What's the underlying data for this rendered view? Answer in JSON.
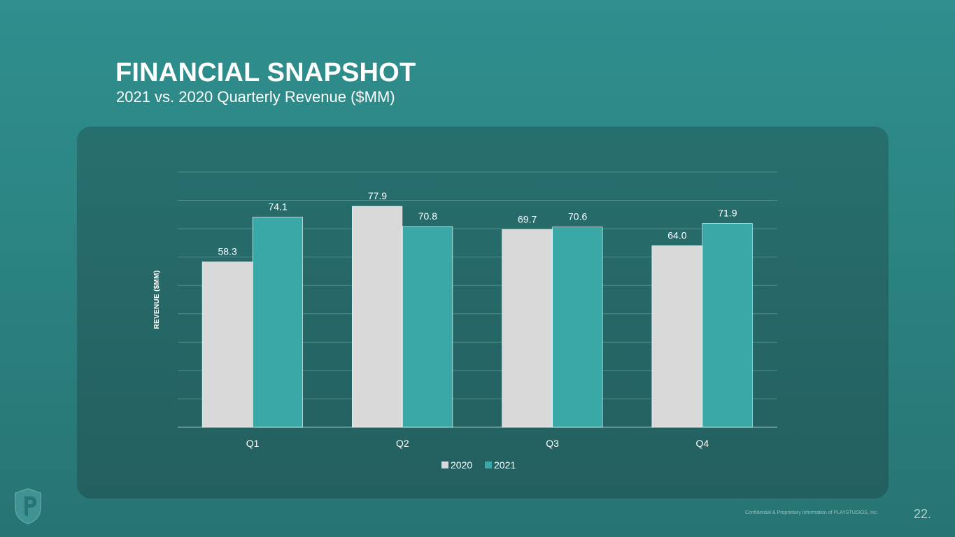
{
  "slide": {
    "title": "FINANCIAL SNAPSHOT",
    "subtitle": "2021 vs. 2020 Quarterly Revenue ($MM)",
    "footer": "Confidential & Proprietary Information of PLAYSTUDIOS, Inc.",
    "page_number": "22."
  },
  "chart_data": {
    "type": "bar",
    "categories": [
      "Q1",
      "Q2",
      "Q3",
      "Q4"
    ],
    "series": [
      {
        "name": "2020",
        "values": [
          58.3,
          77.9,
          69.7,
          64.0
        ],
        "labels": [
          "58.3",
          "77.9",
          "69.7",
          "64.0"
        ],
        "color": "#d9d9d9"
      },
      {
        "name": "2021",
        "values": [
          74.1,
          70.8,
          70.6,
          71.9
        ],
        "labels": [
          "74.1",
          "70.8",
          "70.6",
          "71.9"
        ],
        "color": "#3ba8a8"
      }
    ],
    "title": "",
    "xlabel": "",
    "ylabel": "REVENUE ($MM)",
    "ylim": [
      0,
      90
    ],
    "y_gridline_step": 10,
    "show_y_tick_labels": false,
    "grid": true,
    "legend": "bottom",
    "gridline_color": "#4f8e8d",
    "text_color": "#ffffff"
  },
  "icons": {
    "logo": "playstudios-shield-logo"
  }
}
